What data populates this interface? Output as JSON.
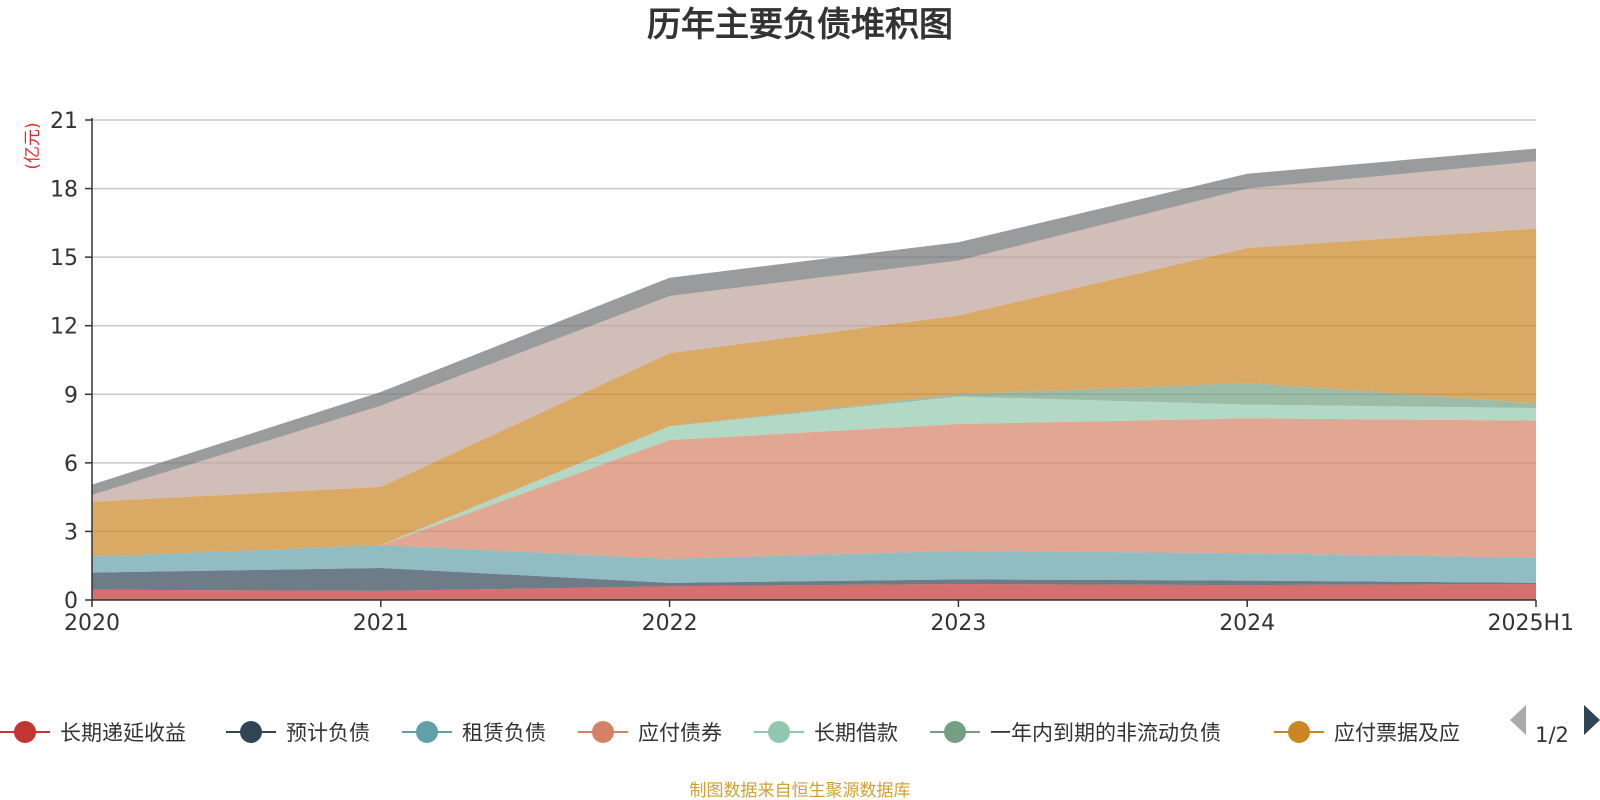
{
  "chart_data": {
    "type": "area",
    "title": "历年主要负债堆积图",
    "unit_label": "(亿元)",
    "categories": [
      "2020",
      "2021",
      "2022",
      "2023",
      "2024",
      "2025H1"
    ],
    "ylim": [
      0,
      21
    ],
    "yticks": [
      0,
      3,
      6,
      9,
      12,
      15,
      18,
      21
    ],
    "grid": true,
    "stacked": true,
    "legend_position": "bottom",
    "series": [
      {
        "name": "长期递延收益",
        "color": "#c23531",
        "values": [
          0.45,
          0.4,
          0.6,
          0.7,
          0.65,
          0.7
        ]
      },
      {
        "name": "预计负债",
        "color": "#2f4554",
        "values": [
          0.75,
          1.0,
          0.15,
          0.2,
          0.2,
          0.05
        ]
      },
      {
        "name": "租赁负债",
        "color": "#61a0a8",
        "values": [
          0.7,
          1.0,
          1.05,
          1.25,
          1.2,
          1.1
        ]
      },
      {
        "name": "应付债券",
        "color": "#d48265",
        "values": [
          0.0,
          0.0,
          5.2,
          5.55,
          5.9,
          6.0
        ]
      },
      {
        "name": "长期借款",
        "color": "#91c7ae",
        "values": [
          0.0,
          0.0,
          0.6,
          1.2,
          0.6,
          0.55
        ]
      },
      {
        "name": "一年内到期的非流动负债",
        "color": "#749f83",
        "values": [
          0.0,
          0.0,
          0.0,
          0.1,
          0.95,
          0.2
        ]
      },
      {
        "name": "应付票据及应",
        "color": "#ca8622",
        "values": [
          2.4,
          2.55,
          3.2,
          3.45,
          5.9,
          7.65
        ]
      },
      {
        "name": "",
        "color": "#bda29a",
        "values": [
          0.3,
          3.55,
          2.5,
          2.4,
          2.6,
          2.95
        ]
      },
      {
        "name": "",
        "color": "#6e7074",
        "values": [
          0.45,
          0.6,
          0.8,
          0.8,
          0.65,
          0.55
        ]
      }
    ]
  },
  "legend": {
    "page": "1/2"
  },
  "source": "制图数据来自恒生聚源数据库"
}
